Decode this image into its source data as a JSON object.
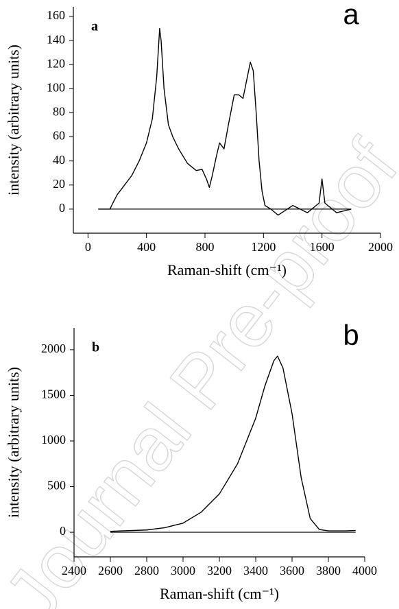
{
  "watermark": "Journal Pre-proof",
  "chart_data": [
    {
      "type": "line",
      "panel_label": "a",
      "corner_label": "a",
      "x_label": "Raman-shift (cm⁻¹)",
      "y_label": "intensity (arbitrary units)",
      "xlim": [
        -100,
        2000
      ],
      "ylim": [
        -20,
        168
      ],
      "xticks": [
        0,
        400,
        800,
        1200,
        1600,
        2000
      ],
      "yticks": [
        0,
        20,
        40,
        60,
        80,
        100,
        120,
        140,
        160
      ],
      "series": [
        {
          "color": "#000000",
          "x": [
            70,
            150,
            170,
            200,
            250,
            300,
            350,
            400,
            440,
            470,
            490,
            500,
            520,
            550,
            580,
            620,
            680,
            740,
            780,
            810,
            830,
            850,
            880,
            900,
            930,
            960,
            1000,
            1030,
            1060,
            1090,
            1110,
            1130,
            1150,
            1170,
            1190,
            1210,
            1250,
            1300,
            1400,
            1500,
            1580,
            1600,
            1620,
            1700,
            1800
          ],
          "values": [
            0,
            0,
            5,
            12,
            20,
            28,
            40,
            55,
            75,
            110,
            150,
            140,
            100,
            70,
            60,
            50,
            38,
            32,
            33,
            25,
            18,
            28,
            45,
            55,
            50,
            70,
            95,
            95,
            92,
            110,
            122,
            115,
            80,
            40,
            15,
            3,
            0,
            -5,
            3,
            -3,
            5,
            25,
            5,
            -3,
            0
          ]
        },
        {
          "color": "#000000",
          "x": [
            70,
            1800
          ],
          "values": [
            0,
            0
          ]
        }
      ]
    },
    {
      "type": "line",
      "panel_label": "b",
      "corner_label": "b",
      "x_label": "Raman-shift (cm⁻¹)",
      "y_label": "intensity (arbitrary units)",
      "xlim": [
        2400,
        4000
      ],
      "ylim": [
        -270,
        2240
      ],
      "xticks": [
        2400,
        2600,
        2800,
        3000,
        3200,
        3400,
        3600,
        3800,
        4000
      ],
      "yticks": [
        0,
        500,
        1000,
        1500,
        2000
      ],
      "series": [
        {
          "color": "#000000",
          "x": [
            2600,
            2800,
            2900,
            3000,
            3100,
            3200,
            3300,
            3400,
            3450,
            3500,
            3520,
            3550,
            3600,
            3650,
            3700,
            3750,
            3800,
            3900,
            3950
          ],
          "values": [
            10,
            25,
            50,
            100,
            220,
            420,
            750,
            1250,
            1600,
            1880,
            1930,
            1800,
            1300,
            600,
            150,
            30,
            15,
            15,
            20
          ]
        },
        {
          "color": "#000000",
          "x": [
            2600,
            3950
          ],
          "values": [
            0,
            0
          ]
        }
      ]
    }
  ]
}
